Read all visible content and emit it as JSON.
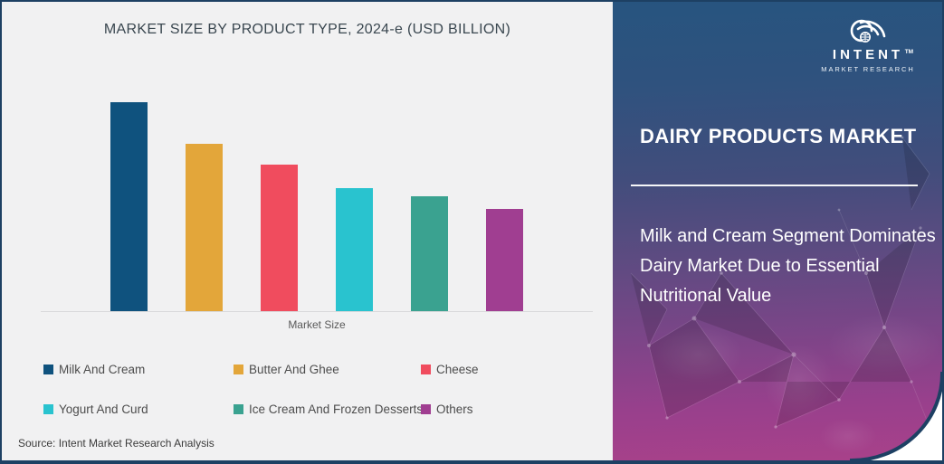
{
  "card": {
    "border_color": "#1d4063",
    "background": "#ffffff"
  },
  "chart_panel": {
    "background": "#f1f1f2",
    "source": "Source: Intent Market Research Analysis"
  },
  "chart_data": {
    "type": "bar",
    "title": "MARKET SIZE BY PRODUCT TYPE, 2024-e (USD BILLION)",
    "xlabel": "Market Size",
    "ylabel": "",
    "categories": [
      "Milk And Cream",
      "Butter And Ghee",
      "Cheese",
      "Yogurt And Curd",
      "Ice Cream And Frozen Desserts",
      "Others"
    ],
    "values": [
      100,
      80,
      70,
      59,
      55,
      49
    ],
    "colors": [
      "#0f527e",
      "#e3a63a",
      "#f04c5e",
      "#29c3cf",
      "#3aa290",
      "#a03e91"
    ],
    "value_axis_visible": false,
    "note": "No value axis is shown in the figure; values are relative bar heights with the tallest bar = 100",
    "grid": false,
    "legend_position": "bottom"
  },
  "panel": {
    "title": "DAIRY PRODUCTS MARKET",
    "description": "Milk and Cream Segment Dominates Dairy Market Due to Essential Nutritional Value",
    "description_lines": [
      "Milk and Cream Segment Dominates",
      "Dairy Market Due to Essential",
      "Nutritional Value"
    ],
    "gradient_top": "#27547f",
    "gradient_bottom": "#a9418a",
    "logo": {
      "name": "INTENT",
      "tm": "TM",
      "subtitle": "MARKET RESEARCH",
      "icon": "radiating-signal-globe-icon"
    }
  }
}
